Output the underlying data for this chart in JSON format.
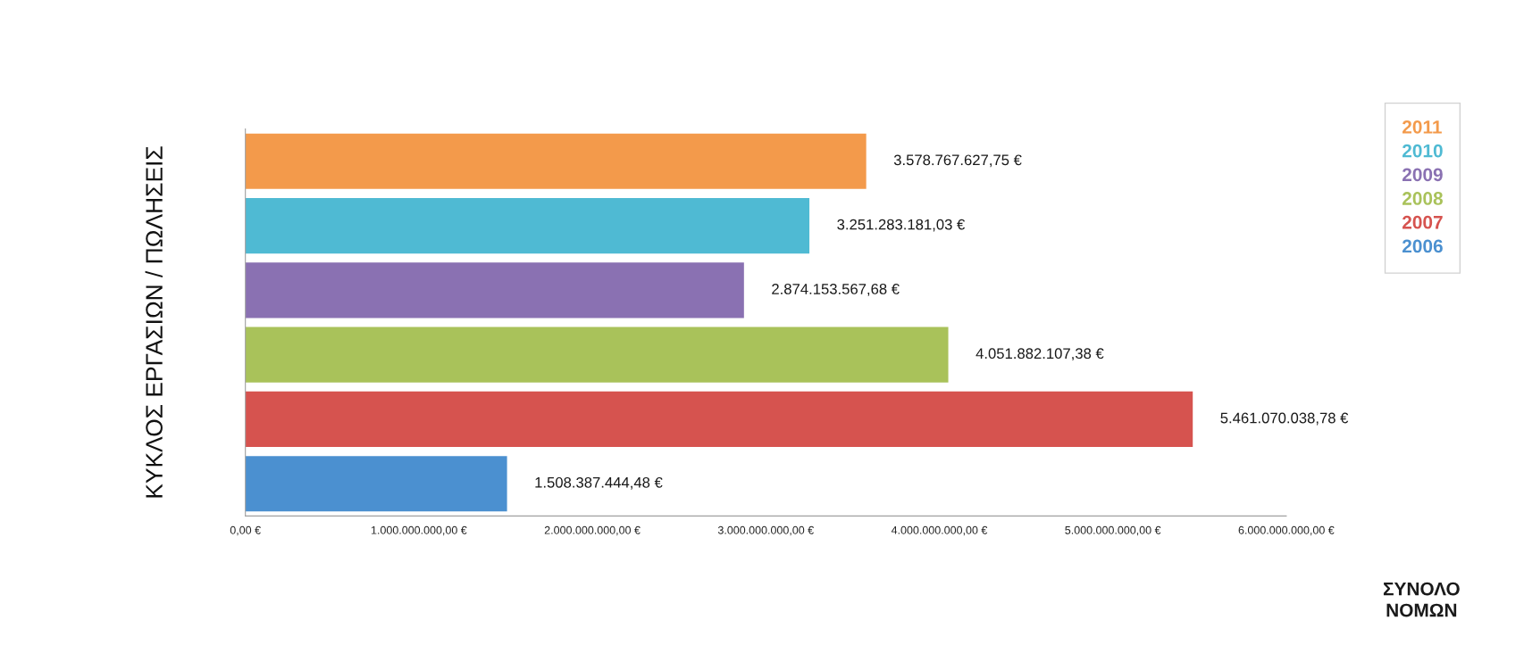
{
  "chart_data": {
    "type": "bar",
    "orientation": "horizontal",
    "stacked": true,
    "ylabel": "ΚΥΚΛΟΣ ΕΡΓΑΣΙΩΝ / ΠΩΛΗΣΕΙΣ",
    "xlabel": "ΣΥΝΟΛΟ\nΝΟΜΩΝ",
    "categories": [
      null,
      null,
      null,
      null,
      null,
      null
    ],
    "series": [
      {
        "name": "2011",
        "color": "#f39a4b",
        "values": [
          3578767627.75,
          null,
          null,
          null,
          null,
          null
        ],
        "value_labels": [
          "3.578.767.627,75 €",
          null,
          null,
          null,
          null,
          null
        ]
      },
      {
        "name": "2010",
        "color": "#4fbad3",
        "values": [
          null,
          3251283181.03,
          null,
          null,
          null,
          null
        ],
        "value_labels": [
          null,
          "3.251.283.181,03 €",
          null,
          null,
          null,
          null
        ]
      },
      {
        "name": "2009",
        "color": "#8a71b2",
        "values": [
          null,
          null,
          2874153567.68,
          null,
          null,
          null
        ],
        "value_labels": [
          null,
          null,
          "2.874.153.567,68 €",
          null,
          null,
          null
        ]
      },
      {
        "name": "2008",
        "color": "#a9c25a",
        "values": [
          null,
          null,
          null,
          4051882107.38,
          null,
          null
        ],
        "value_labels": [
          null,
          null,
          null,
          "4.051.882.107,38 €",
          null,
          null
        ]
      },
      {
        "name": "2007",
        "color": "#d6534f",
        "values": [
          null,
          null,
          null,
          null,
          5461070038.78,
          null
        ],
        "value_labels": [
          null,
          null,
          null,
          null,
          "5.461.070.038,78 €",
          null
        ]
      },
      {
        "name": "2006",
        "color": "#4b90d0",
        "values": [
          null,
          null,
          null,
          null,
          null,
          1508387444.48
        ],
        "value_labels": [
          null,
          null,
          null,
          null,
          null,
          "1.508.387.444,48 €"
        ]
      }
    ],
    "xlim": [
      0,
      6000000000
    ],
    "xticks": [
      {
        "value": 0,
        "label": "0,00 €"
      },
      {
        "value": 1000000000,
        "label": "1.000.000.000,00 €"
      },
      {
        "value": 2000000000,
        "label": "2.000.000.000,00 €"
      },
      {
        "value": 3000000000,
        "label": "3.000.000.000,00 €"
      },
      {
        "value": 4000000000,
        "label": "4.000.000.000,00 €"
      },
      {
        "value": 5000000000,
        "label": "5.000.000.000,00 €"
      },
      {
        "value": 6000000000,
        "label": "6.000.000.000,00 €"
      }
    ],
    "legend": "top right",
    "grid": false
  }
}
